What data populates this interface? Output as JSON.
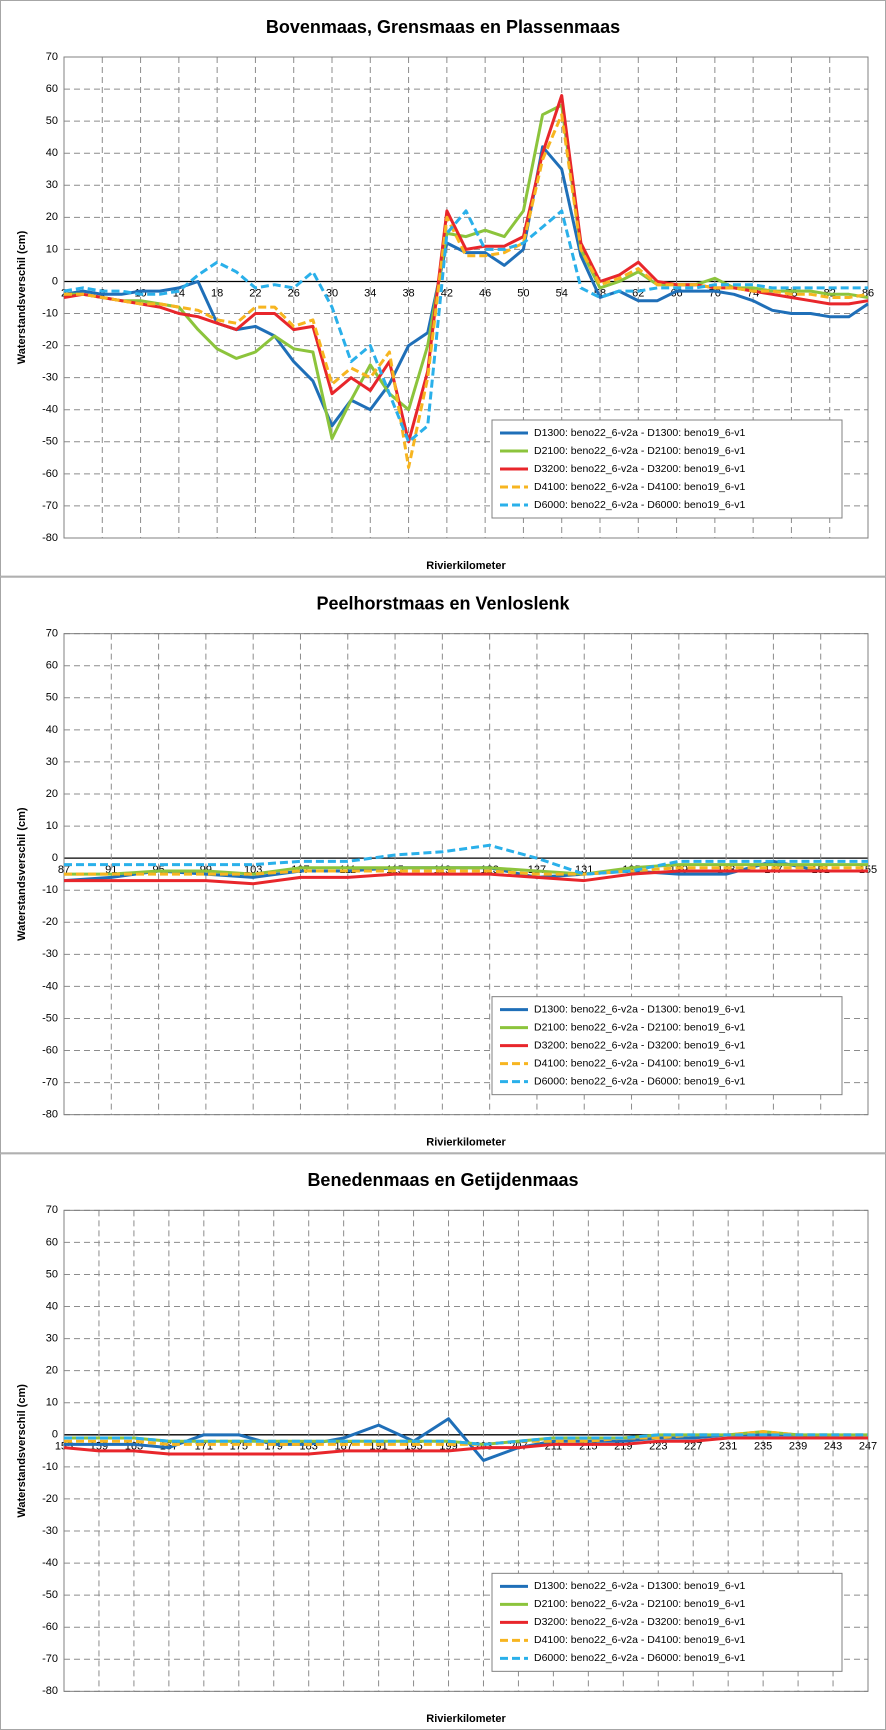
{
  "chart_data": [
    {
      "type": "line",
      "title": "Bovenmaas, Grensmaas en Plassenmaas",
      "x_label": "Rivierkilometer",
      "y_label": "Waterstandsverschil (cm)",
      "x": [
        2,
        4,
        6,
        8,
        10,
        12,
        14,
        16,
        18,
        20,
        22,
        24,
        26,
        28,
        30,
        32,
        34,
        36,
        38,
        40,
        42,
        44,
        46,
        48,
        50,
        52,
        54,
        56,
        58,
        60,
        62,
        64,
        66,
        68,
        70,
        72,
        74,
        76,
        78,
        80,
        82,
        84,
        86
      ],
      "xlim": [
        2,
        86
      ],
      "xticks": [
        2,
        6,
        10,
        14,
        18,
        22,
        26,
        30,
        34,
        38,
        42,
        46,
        50,
        54,
        58,
        62,
        66,
        70,
        74,
        78,
        82,
        86
      ],
      "ylim": [
        -80,
        70
      ],
      "yticks": [
        -80,
        -70,
        -60,
        -50,
        -40,
        -30,
        -20,
        -10,
        0,
        10,
        20,
        30,
        40,
        50,
        60,
        70
      ],
      "grid": true,
      "legend": "lower right",
      "series": [
        {
          "name": "D1300: beno22_6-v2a - D1300: beno19_6-v1",
          "color": "#1f6fb8",
          "dashed": false,
          "values": [
            -4,
            -3,
            -4,
            -4,
            -3,
            -3,
            -2,
            0,
            -13,
            -15,
            -14,
            -17,
            -25,
            -31,
            -45,
            -37,
            -40,
            -32,
            -20,
            -16,
            12,
            9,
            9,
            5,
            10,
            42,
            35,
            8,
            -5,
            -3,
            -6,
            -6,
            -3,
            -3,
            -3,
            -4,
            -6,
            -9,
            -10,
            -10,
            -11,
            -11,
            -7
          ]
        },
        {
          "name": "D2100: beno22_6-v2a - D2100: beno19_6-v1",
          "color": "#8cc43c",
          "dashed": false,
          "values": [
            -4,
            -4,
            -5,
            -6,
            -6,
            -7,
            -8,
            -15,
            -21,
            -24,
            -22,
            -17,
            -21,
            -22,
            -49,
            -37,
            -26,
            -35,
            -40,
            -20,
            15,
            14,
            16,
            14,
            22,
            52,
            55,
            10,
            -2,
            0,
            3,
            -1,
            -1,
            -1,
            1,
            -2,
            -2,
            -3,
            -3,
            -3,
            -4,
            -4,
            -5
          ]
        },
        {
          "name": "D3200: beno22_6-v2a - D3200: beno19_6-v1",
          "color": "#e8262b",
          "dashed": false,
          "values": [
            -5,
            -4,
            -5,
            -6,
            -7,
            -8,
            -10,
            -11,
            -13,
            -15,
            -10,
            -10,
            -15,
            -14,
            -35,
            -30,
            -34,
            -25,
            -50,
            -28,
            22,
            10,
            11,
            11,
            14,
            40,
            58,
            12,
            0,
            2,
            6,
            0,
            -1,
            -1,
            -2,
            -2,
            -3,
            -4,
            -5,
            -6,
            -7,
            -7,
            -6
          ]
        },
        {
          "name": "D4100: beno22_6-v2a - D4100: beno19_6-v1",
          "color": "#f7b520",
          "dashed": true,
          "values": [
            -4,
            -4,
            -5,
            -6,
            -7,
            -7,
            -8,
            -9,
            -12,
            -13,
            -8,
            -8,
            -14,
            -12,
            -32,
            -27,
            -30,
            -22,
            -58,
            -30,
            20,
            8,
            8,
            9,
            12,
            38,
            52,
            10,
            -1,
            1,
            4,
            -1,
            -1,
            -1,
            -2,
            -2,
            -3,
            -3,
            -4,
            -4,
            -5,
            -5,
            -4
          ]
        },
        {
          "name": "D6000: beno22_6-v2a - D6000: beno19_6-v1",
          "color": "#2ab0ea",
          "dashed": true,
          "values": [
            -3,
            -2,
            -3,
            -3,
            -4,
            -4,
            -3,
            2,
            6,
            3,
            -2,
            -1,
            -2,
            3,
            -8,
            -25,
            -20,
            -35,
            -50,
            -45,
            15,
            22,
            10,
            10,
            12,
            17,
            22,
            -2,
            -5,
            -3,
            -3,
            -2,
            -2,
            -2,
            -1,
            -1,
            -1,
            -2,
            -2,
            -2,
            -2,
            -2,
            -2
          ]
        }
      ]
    },
    {
      "type": "line",
      "title": "Peelhorstmaas en Venloslenk",
      "x_label": "Rivierkilometer",
      "y_label": "Waterstandsverschil (cm)",
      "x": [
        87,
        91,
        95,
        99,
        103,
        107,
        111,
        115,
        119,
        123,
        127,
        131,
        135,
        139,
        143,
        147,
        151,
        155
      ],
      "xlim": [
        87,
        155
      ],
      "xticks": [
        87,
        91,
        95,
        99,
        103,
        107,
        111,
        115,
        119,
        123,
        127,
        131,
        135,
        139,
        143,
        147,
        151,
        155
      ],
      "ylim": [
        -80,
        70
      ],
      "yticks": [
        -80,
        -70,
        -60,
        -50,
        -40,
        -30,
        -20,
        -10,
        0,
        10,
        20,
        30,
        40,
        50,
        60,
        70
      ],
      "grid": true,
      "legend": "lower right",
      "series": [
        {
          "name": "D1300: beno22_6-v2a - D1300: beno19_6-v1",
          "color": "#1f6fb8",
          "dashed": false,
          "values": [
            -7,
            -6,
            -4,
            -5,
            -6,
            -4,
            -4,
            -3,
            -3,
            -3,
            -6,
            -5,
            -4,
            -5,
            -5,
            -1,
            -4,
            -4
          ]
        },
        {
          "name": "D2100: beno22_6-v2a - D2100: beno19_6-v1",
          "color": "#8cc43c",
          "dashed": false,
          "values": [
            -5,
            -5,
            -4,
            -4,
            -5,
            -3,
            -3,
            -3,
            -3,
            -3,
            -4,
            -5,
            -3,
            -2,
            -2,
            -2,
            -2,
            -2
          ]
        },
        {
          "name": "D3200: beno22_6-v2a - D3200: beno19_6-v1",
          "color": "#e8262b",
          "dashed": false,
          "values": [
            -7,
            -7,
            -7,
            -7,
            -8,
            -6,
            -6,
            -5,
            -5,
            -5,
            -6,
            -7,
            -5,
            -4,
            -4,
            -4,
            -4,
            -4
          ]
        },
        {
          "name": "D4100: beno22_6-v2a - D4100: beno19_6-v1",
          "color": "#f7b520",
          "dashed": true,
          "values": [
            -5,
            -5,
            -5,
            -5,
            -5,
            -4,
            -4,
            -4,
            -4,
            -4,
            -5,
            -5,
            -4,
            -3,
            -3,
            -3,
            -3,
            -3
          ]
        },
        {
          "name": "D6000: beno22_6-v2a - D6000: beno19_6-v1",
          "color": "#2ab0ea",
          "dashed": true,
          "values": [
            -2,
            -2,
            -2,
            -2,
            -2,
            -1,
            -1,
            1,
            2,
            4,
            0,
            -5,
            -4,
            -1,
            -1,
            -1,
            -1,
            -1
          ]
        }
      ]
    },
    {
      "type": "line",
      "title": "Benedenmaas en Getijdenmaas",
      "x_label": "Rivierkilometer",
      "y_label": "Waterstandsverschil (cm)",
      "x": [
        155,
        159,
        163,
        167,
        171,
        175,
        179,
        183,
        187,
        191,
        195,
        199,
        203,
        207,
        211,
        215,
        219,
        223,
        227,
        231,
        235,
        239,
        243,
        247
      ],
      "xlim": [
        155,
        247
      ],
      "xticks": [
        155,
        159,
        163,
        167,
        171,
        175,
        179,
        183,
        187,
        191,
        195,
        199,
        203,
        207,
        211,
        215,
        219,
        223,
        227,
        231,
        235,
        239,
        243,
        247
      ],
      "ylim": [
        -80,
        70
      ],
      "yticks": [
        -80,
        -70,
        -60,
        -50,
        -40,
        -30,
        -20,
        -10,
        0,
        10,
        20,
        30,
        40,
        50,
        60,
        70
      ],
      "grid": true,
      "legend": "lower right",
      "series": [
        {
          "name": "D1300: beno22_6-v2a - D1300: beno19_6-v1",
          "color": "#1f6fb8",
          "dashed": false,
          "values": [
            -3,
            -3,
            -3,
            -4,
            0,
            0,
            -3,
            -3,
            -1,
            3,
            -2,
            5,
            -8,
            -4,
            -2,
            -2,
            -2,
            -1,
            -1,
            0,
            0,
            0,
            -1,
            -1
          ]
        },
        {
          "name": "D2100: beno22_6-v2a - D2100: beno19_6-v1",
          "color": "#8cc43c",
          "dashed": false,
          "values": [
            -1,
            -1,
            -1,
            -2,
            -2,
            -2,
            -2,
            -2,
            -2,
            -2,
            -2,
            -2,
            -3,
            -2,
            -1,
            -1,
            -1,
            0,
            0,
            0,
            1,
            0,
            0,
            0
          ]
        },
        {
          "name": "D3200: beno22_6-v2a - D3200: beno19_6-v1",
          "color": "#e8262b",
          "dashed": false,
          "values": [
            -4,
            -5,
            -5,
            -6,
            -6,
            -6,
            -6,
            -6,
            -5,
            -5,
            -5,
            -5,
            -4,
            -4,
            -3,
            -3,
            -3,
            -2,
            -2,
            -1,
            -1,
            -1,
            -1,
            -1
          ]
        },
        {
          "name": "D4100: beno22_6-v2a - D4100: beno19_6-v1",
          "color": "#f7b520",
          "dashed": true,
          "values": [
            -2,
            -2,
            -2,
            -3,
            -3,
            -3,
            -3,
            -3,
            -3,
            -3,
            -3,
            -3,
            -3,
            -2,
            -2,
            -2,
            -1,
            -1,
            0,
            0,
            1,
            0,
            0,
            0
          ]
        },
        {
          "name": "D6000: beno22_6-v2a - D6000: beno19_6-v1",
          "color": "#2ab0ea",
          "dashed": true,
          "values": [
            -1,
            -1,
            -1,
            -2,
            -2,
            -2,
            -2,
            -2,
            -2,
            -2,
            -2,
            -2,
            -3,
            -2,
            -1,
            -1,
            -1,
            0,
            0,
            0,
            0,
            0,
            0,
            0
          ]
        }
      ]
    }
  ]
}
